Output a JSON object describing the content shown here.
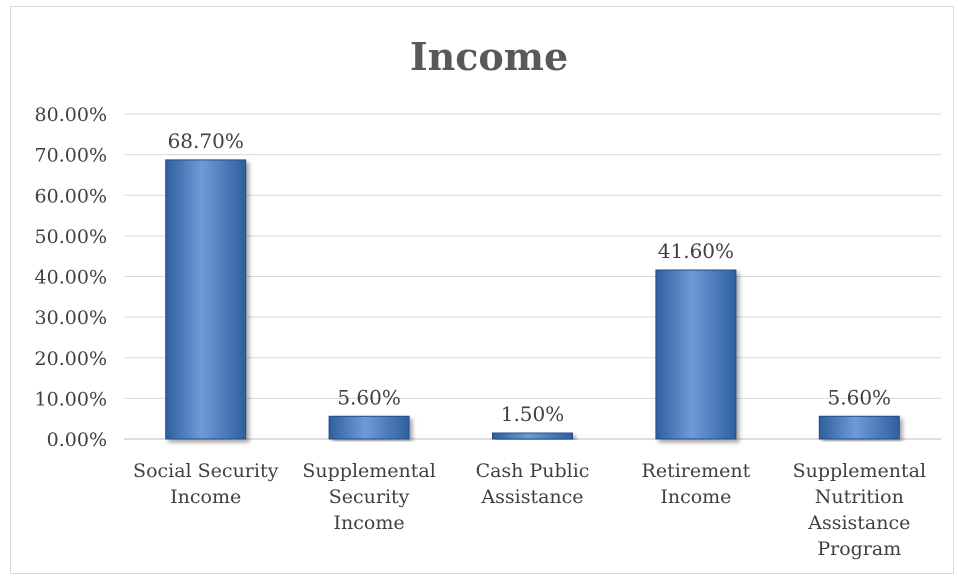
{
  "chart_data": {
    "type": "bar",
    "title": "Income",
    "xlabel": "",
    "ylabel": "",
    "categories": [
      "Social Security Income",
      "Supplemental Security Income",
      "Cash Public Assistance",
      "Retirement Income",
      "Supplemental Nutrition Assistance Program"
    ],
    "category_label_lines": [
      [
        "Social Security",
        "Income"
      ],
      [
        "Supplemental",
        "Security",
        "Income"
      ],
      [
        "Cash Public",
        "Assistance"
      ],
      [
        "Retirement",
        "Income"
      ],
      [
        "Supplemental",
        "Nutrition",
        "Assistance",
        "Program"
      ]
    ],
    "values": [
      68.7,
      5.6,
      1.5,
      41.6,
      5.6
    ],
    "data_labels": [
      "68.70%",
      "5.60%",
      "1.50%",
      "41.60%",
      "5.60%"
    ],
    "ylim": [
      0,
      80
    ],
    "yticks": [
      0,
      10,
      20,
      30,
      40,
      50,
      60,
      70,
      80
    ],
    "ytick_labels": [
      "0.00%",
      "10.00%",
      "20.00%",
      "30.00%",
      "40.00%",
      "50.00%",
      "60.00%",
      "70.00%",
      "80.00%"
    ],
    "grid": true,
    "legend": "none",
    "colors": {
      "bar_fill_light": "#6f9bd8",
      "bar_fill_dark": "#2f5f9e",
      "bar_edge": "#244d82",
      "grid": "#d9d9d9",
      "axis": "#bfbfbf"
    }
  }
}
